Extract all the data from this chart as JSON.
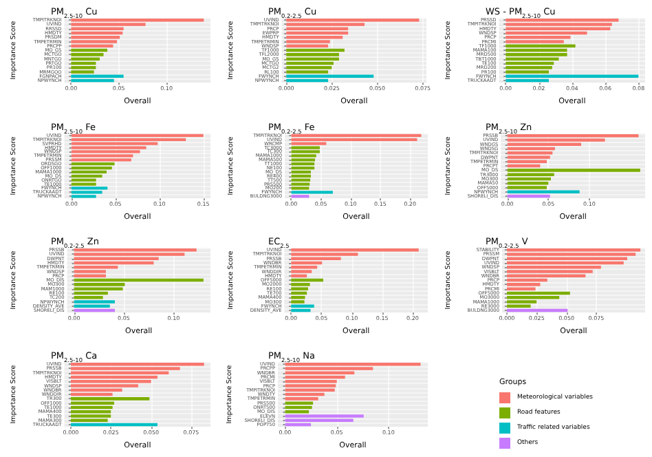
{
  "chart_data": [
    {
      "type": "bar",
      "orientation": "horizontal",
      "stacked": true,
      "grid": true,
      "title": "PM$_{2.5-10}$ Cu",
      "xlabel": "Overall",
      "ylabel": "Importance Score",
      "xlim": [
        -0.007,
        0.146
      ],
      "xticks": [
        {
          "value": 0,
          "label": "0.00"
        },
        {
          "value": 0.05,
          "label": "0.05"
        },
        {
          "value": 0.1,
          "label": "0.10"
        }
      ],
      "categories": [
        "TMPITRKNOI",
        "UVIND",
        "RRSSD",
        "HMDTY",
        "PRSDM",
        "TMPETRMIN",
        "PRCPP",
        "MO_GS",
        "MCTGO",
        "MNTGO",
        "PRTGO",
        "PR100",
        "MRMGOO",
        "FGNPACH",
        "NPWYNCH"
      ],
      "series": [
        {
          "color": "#f8766d",
          "values": [
            0.139,
            0.078,
            0.055,
            0.054,
            0.051,
            0.048,
            0.044,
            null,
            null,
            null,
            null,
            null,
            null,
            null,
            null
          ]
        },
        {
          "color": "#7cae00",
          "values": [
            null,
            null,
            null,
            null,
            null,
            null,
            null,
            0.038,
            0.034,
            0.03,
            0.026,
            0.026,
            0.024,
            null,
            null
          ]
        },
        {
          "color": "#00bfc4",
          "values": [
            null,
            null,
            null,
            null,
            null,
            null,
            null,
            null,
            null,
            null,
            null,
            null,
            null,
            0.055,
            0.045
          ]
        }
      ]
    },
    {
      "type": "bar",
      "orientation": "horizontal",
      "stacked": true,
      "grid": true,
      "title": "PM$_{0.2-2.5}$ Cu",
      "xlabel": "Overall",
      "ylabel": "Importance Score",
      "xlim": [
        -0.0025,
        0.077
      ],
      "xticks": [
        {
          "value": 0,
          "label": "0.000"
        },
        {
          "value": 0.025,
          "label": "0.025"
        },
        {
          "value": 0.05,
          "label": "0.050"
        },
        {
          "value": 0.075,
          "label": "0.075"
        }
      ],
      "categories": [
        "UVIND",
        "TMPITRKNOI",
        "PRCP",
        "EWPRP",
        "HMDTY",
        "TMPETRMIN",
        "WNDSP",
        "TF1000",
        "TFL2000",
        "MO_GS",
        "MCTGO",
        "MCTG2",
        "RL100",
        "FWYNCH",
        "NPWYNCH"
      ],
      "series": [
        {
          "color": "#f8766d",
          "values": [
            0.073,
            0.043,
            0.034,
            0.034,
            0.031,
            0.024,
            0.023,
            null,
            null,
            null,
            null,
            null,
            null,
            null,
            null
          ]
        },
        {
          "color": "#7cae00",
          "values": [
            null,
            null,
            null,
            null,
            null,
            null,
            null,
            0.032,
            0.029,
            0.029,
            0.026,
            0.025,
            0.023,
            null,
            null
          ]
        },
        {
          "color": "#00bfc4",
          "values": [
            null,
            null,
            null,
            null,
            null,
            null,
            null,
            null,
            null,
            null,
            null,
            null,
            null,
            0.048,
            0.023
          ]
        }
      ]
    },
    {
      "type": "bar",
      "orientation": "horizontal",
      "stacked": true,
      "grid": true,
      "title": "WS - PM$_{2.5-10}$ Cu",
      "xlabel": "Overall",
      "ylabel": "Importance Score",
      "xlim": [
        -0.004,
        0.084
      ],
      "xticks": [
        {
          "value": 0,
          "label": "0.00"
        },
        {
          "value": 0.02,
          "label": "0.02"
        },
        {
          "value": 0.04,
          "label": "0.04"
        },
        {
          "value": 0.06,
          "label": "0.06"
        },
        {
          "value": 0.08,
          "label": "0.08"
        }
      ],
      "categories": [
        "PRSSD",
        "TMPITRKNOI",
        "HMDTY",
        "WNDSP",
        "PRCP",
        "PRCMI",
        "TF1000",
        "MAMA100",
        "MRD500",
        "TBT1000",
        "TE100",
        "MRD200",
        "PR100",
        "FWYNCH",
        "TRUCKAADT"
      ],
      "series": [
        {
          "color": "#f8766d",
          "values": [
            0.068,
            0.064,
            0.063,
            0.049,
            0.039,
            0.035,
            null,
            null,
            null,
            null,
            null,
            null,
            null,
            null,
            null
          ]
        },
        {
          "color": "#7cae00",
          "values": [
            null,
            null,
            null,
            null,
            null,
            null,
            0.042,
            0.037,
            0.037,
            0.032,
            0.029,
            0.028,
            0.026,
            null,
            null
          ]
        },
        {
          "color": "#00bfc4",
          "values": [
            null,
            null,
            null,
            null,
            null,
            null,
            null,
            null,
            null,
            null,
            null,
            null,
            null,
            0.08,
            0.026
          ]
        }
      ]
    },
    {
      "type": "bar",
      "orientation": "horizontal",
      "stacked": true,
      "grid": true,
      "title": "PM$_{2.5-10}$ Fe",
      "xlabel": "Overall",
      "ylabel": "Importance Score",
      "xlim": [
        -0.008,
        0.158
      ],
      "xticks": [
        {
          "value": 0,
          "label": "0.00"
        },
        {
          "value": 0.05,
          "label": "0.05"
        },
        {
          "value": 0.1,
          "label": "0.10"
        },
        {
          "value": 0.15,
          "label": "0.15"
        }
      ],
      "categories": [
        "UVIND",
        "TMPITRKNOI",
        "SVPRHD",
        "HMDTY",
        "WNDSP",
        "TMPETRMIN",
        "PRSSM",
        "ORDSGO",
        "OFF1000",
        "MAMA1000",
        "MO_DS",
        "ONRTGO",
        "TE1000",
        "FWYNCH",
        "TRUCKAADT",
        "NPWYNCH"
      ],
      "series": [
        {
          "color": "#f8766d",
          "values": [
            0.15,
            0.13,
            0.098,
            0.085,
            0.078,
            0.07,
            0.068,
            null,
            null,
            null,
            null,
            null,
            null,
            null,
            null,
            null
          ]
        },
        {
          "color": "#7cae00",
          "values": [
            null,
            null,
            null,
            null,
            null,
            null,
            null,
            0.049,
            0.046,
            0.04,
            0.035,
            0.028,
            0.028,
            null,
            null,
            null
          ]
        },
        {
          "color": "#00bfc4",
          "values": [
            null,
            null,
            null,
            null,
            null,
            null,
            null,
            null,
            null,
            null,
            null,
            null,
            null,
            0.041,
            0.035,
            0.028
          ]
        }
      ]
    },
    {
      "type": "bar",
      "orientation": "horizontal",
      "stacked": true,
      "grid": true,
      "title": "PM$_{0.2-2.5}$ Fe",
      "xlabel": "Overall",
      "ylabel": "Importance Score",
      "xlim": [
        -0.011,
        0.23
      ],
      "xticks": [
        {
          "value": 0,
          "label": "0.00"
        },
        {
          "value": 0.05,
          "label": "0.05"
        },
        {
          "value": 0.1,
          "label": "0.10"
        },
        {
          "value": 0.15,
          "label": "0.15"
        },
        {
          "value": 0.2,
          "label": "0.20"
        }
      ],
      "categories": [
        "TMPITRKNOI",
        "UVIND",
        "WRCMP",
        "TC3000",
        "TC300",
        "MAMA1000",
        "MAMA500",
        "TT1000",
        "NE100",
        "MO_DS",
        "RE400",
        "TT500",
        "PRS500",
        "MO200",
        "FWYNCH",
        "BULDNG3000"
      ],
      "series": [
        {
          "color": "#f8766d",
          "values": [
            0.219,
            0.212,
            0.059,
            null,
            null,
            null,
            null,
            null,
            null,
            null,
            null,
            null,
            null,
            null,
            null,
            null
          ]
        },
        {
          "color": "#7cae00",
          "values": [
            null,
            null,
            null,
            0.048,
            0.048,
            0.042,
            0.04,
            0.039,
            0.039,
            0.033,
            0.033,
            0.032,
            0.031,
            0.03,
            null,
            null
          ]
        },
        {
          "color": "#00bfc4",
          "values": [
            null,
            null,
            null,
            null,
            null,
            null,
            null,
            null,
            null,
            null,
            null,
            null,
            null,
            null,
            0.07,
            null
          ]
        },
        {
          "color": "#c77cff",
          "values": [
            null,
            null,
            null,
            null,
            null,
            null,
            null,
            null,
            null,
            null,
            null,
            null,
            null,
            null,
            null,
            0.03
          ]
        }
      ]
    },
    {
      "type": "bar",
      "orientation": "horizontal",
      "stacked": true,
      "grid": true,
      "title": "PM$_{2.5-10}$ Zn",
      "xlabel": "Overall",
      "ylabel": "Importance Score",
      "xlim": [
        -0.008,
        0.168
      ],
      "xticks": [
        {
          "value": 0,
          "label": "0.00"
        },
        {
          "value": 0.05,
          "label": "0.05"
        },
        {
          "value": 0.1,
          "label": "0.10"
        }
      ],
      "categories": [
        "PRSSB",
        "UVIND",
        "WNDGS",
        "WNDSG",
        "TMPITRKNOI",
        "DWPNT",
        "TMPETRMIN",
        "PRCPT",
        "MO_DS",
        "TR3000",
        "MO300",
        "MAMA50",
        "OFF5000",
        "NPWYNCH",
        "SHORELI_DIS"
      ],
      "series": [
        {
          "color": "#f8766d",
          "values": [
            0.16,
            0.119,
            0.09,
            0.058,
            0.055,
            0.052,
            0.048,
            0.04,
            null,
            null,
            null,
            null,
            null,
            null,
            null
          ]
        },
        {
          "color": "#7cae00",
          "values": [
            null,
            null,
            null,
            null,
            null,
            null,
            null,
            null,
            0.162,
            0.057,
            0.053,
            0.05,
            0.048,
            null,
            null
          ]
        },
        {
          "color": "#00bfc4",
          "values": [
            null,
            null,
            null,
            null,
            null,
            null,
            null,
            null,
            null,
            null,
            null,
            null,
            null,
            0.088,
            null
          ]
        },
        {
          "color": "#c77cff",
          "values": [
            null,
            null,
            null,
            null,
            null,
            null,
            null,
            null,
            null,
            null,
            null,
            null,
            null,
            null,
            0.052
          ]
        }
      ]
    },
    {
      "type": "bar",
      "orientation": "horizontal",
      "stacked": true,
      "grid": true,
      "title": "PM$_{0.2-2.5}$ Zn",
      "xlabel": "Overall",
      "ylabel": "Importance Score",
      "xlim": [
        -0.007,
        0.137
      ],
      "xticks": [
        {
          "value": 0,
          "label": "0.00"
        },
        {
          "value": 0.05,
          "label": "0.05"
        },
        {
          "value": 0.1,
          "label": "0.10"
        }
      ],
      "categories": [
        "PRSSB",
        "UVIND",
        "DWPNT",
        "HMDTY",
        "TMPETRMIN",
        "WNDSP",
        "PRCP",
        "MO_DIS",
        "MO300",
        "MAM1000",
        "RE100",
        "TC200",
        "NPWYNCH",
        "DENSITY_AVE",
        "SHORELI_DIS"
      ],
      "series": [
        {
          "color": "#f8766d",
          "values": [
            0.123,
            0.111,
            0.085,
            0.08,
            0.044,
            0.032,
            0.032,
            null,
            null,
            null,
            null,
            null,
            null,
            null,
            null
          ]
        },
        {
          "color": "#7cae00",
          "values": [
            null,
            null,
            null,
            null,
            null,
            null,
            null,
            0.13,
            0.051,
            0.049,
            0.034,
            0.029,
            null,
            null,
            null
          ]
        },
        {
          "color": "#00bfc4",
          "values": [
            null,
            null,
            null,
            null,
            null,
            null,
            null,
            null,
            null,
            null,
            null,
            null,
            0.041,
            0.036,
            null
          ]
        },
        {
          "color": "#c77cff",
          "values": [
            null,
            null,
            null,
            null,
            null,
            null,
            null,
            null,
            null,
            null,
            null,
            null,
            null,
            null,
            0.041
          ]
        }
      ]
    },
    {
      "type": "bar",
      "orientation": "horizontal",
      "stacked": true,
      "grid": true,
      "title": "EC$_{2.5}$",
      "xlabel": "Overall",
      "ylabel": "Importance Score",
      "xlim": [
        -0.011,
        0.225
      ],
      "xticks": [
        {
          "value": 0,
          "label": "0.00"
        },
        {
          "value": 0.05,
          "label": "0.05"
        },
        {
          "value": 0.1,
          "label": "0.10"
        },
        {
          "value": 0.15,
          "label": "0.15"
        },
        {
          "value": 0.2,
          "label": "0.20"
        }
      ],
      "categories": [
        "UVIND",
        "TMPITRKNOI",
        "PRSSB",
        "WNDBR",
        "TMPETRMIN",
        "WNDDIR",
        "HMDTY",
        "OFF5000",
        "MO2000",
        "RE100",
        "TE700",
        "MAMA400",
        "MO300",
        "FWYNCH",
        "DENSITY_AVE"
      ],
      "series": [
        {
          "color": "#f8766d",
          "values": [
            0.21,
            0.11,
            0.082,
            0.051,
            0.043,
            0.034,
            0.026,
            null,
            null,
            null,
            null,
            null,
            null,
            null,
            null
          ]
        },
        {
          "color": "#7cae00",
          "values": [
            null,
            null,
            null,
            null,
            null,
            null,
            null,
            0.053,
            0.031,
            0.028,
            0.026,
            0.023,
            0.022,
            null,
            null
          ]
        },
        {
          "color": "#00bfc4",
          "values": [
            null,
            null,
            null,
            null,
            null,
            null,
            null,
            null,
            null,
            null,
            null,
            null,
            null,
            0.038,
            0.032
          ]
        }
      ]
    },
    {
      "type": "bar",
      "orientation": "horizontal",
      "stacked": true,
      "grid": true,
      "title": "PM$_{0.2-2.5}$ V",
      "xlabel": "Overall",
      "ylabel": "Importance Score",
      "xlim": [
        -0.004,
        0.116
      ],
      "xticks": [
        {
          "value": 0,
          "label": "0.000"
        },
        {
          "value": 0.025,
          "label": "0.025"
        },
        {
          "value": 0.05,
          "label": "0.050"
        },
        {
          "value": 0.075,
          "label": "0.075"
        }
      ],
      "categories": [
        "STABILITY",
        "PRSSM",
        "DWPNT",
        "UVIND",
        "WNDSP",
        "VISBLT",
        "WNDBR",
        "PRCP",
        "HMDTY",
        "PRCMI",
        "OFF5000",
        "MO3000",
        "MAMA1000",
        "RE3000",
        "BULDNG3000"
      ],
      "series": [
        {
          "color": "#f8766d",
          "values": [
            0.112,
            0.108,
            0.101,
            0.098,
            0.079,
            0.072,
            0.066,
            0.034,
            0.028,
            0.024,
            null,
            null,
            null,
            null,
            null
          ]
        },
        {
          "color": "#7cae00",
          "values": [
            null,
            null,
            null,
            null,
            null,
            null,
            null,
            null,
            null,
            null,
            0.053,
            0.044,
            0.025,
            0.02,
            null
          ]
        },
        {
          "color": "#c77cff",
          "values": [
            null,
            null,
            null,
            null,
            null,
            null,
            null,
            null,
            null,
            null,
            null,
            null,
            null,
            null,
            0.051
          ]
        }
      ]
    },
    {
      "type": "bar",
      "orientation": "horizontal",
      "stacked": true,
      "grid": true,
      "title": "PM$_{2.5-10}$ Ca",
      "xlabel": "Overall",
      "ylabel": "Importance Score",
      "xlim": [
        -0.004,
        0.087
      ],
      "xticks": [
        {
          "value": 0,
          "label": "0.000"
        },
        {
          "value": 0.025,
          "label": "0.025"
        },
        {
          "value": 0.05,
          "label": "0.050"
        },
        {
          "value": 0.075,
          "label": "0.075"
        }
      ],
      "categories": [
        "UVIND",
        "PRSSB",
        "TMPITRKNOI",
        "HMDTY",
        "VISBLT",
        "WNDSP",
        "WNDBR",
        "WNDDIR",
        "TR300",
        "OFF1000",
        "TE1000",
        "MAMA400",
        "TE300",
        "MAMA300",
        "TRUCKAADT"
      ],
      "series": [
        {
          "color": "#f8766d",
          "values": [
            0.083,
            0.068,
            0.061,
            0.054,
            0.05,
            0.042,
            0.032,
            0.026,
            null,
            null,
            null,
            null,
            null,
            null,
            null
          ]
        },
        {
          "color": "#7cae00",
          "values": [
            null,
            null,
            null,
            null,
            null,
            null,
            null,
            null,
            0.049,
            0.027,
            0.026,
            0.025,
            0.025,
            0.023,
            null
          ]
        },
        {
          "color": "#00bfc4",
          "values": [
            null,
            null,
            null,
            null,
            null,
            null,
            null,
            null,
            null,
            null,
            null,
            null,
            null,
            null,
            0.054
          ]
        }
      ]
    },
    {
      "type": "bar",
      "orientation": "horizontal",
      "stacked": true,
      "grid": true,
      "legend": "right",
      "legend_title": "Groups",
      "title": "PM$_{2.5-10}$ Na",
      "xlabel": "Overall",
      "ylabel": "Importance Score",
      "xlim": [
        -0.007,
        0.138
      ],
      "xticks": [
        {
          "value": 0,
          "label": "0.00"
        },
        {
          "value": 0.05,
          "label": "0.05"
        },
        {
          "value": 0.1,
          "label": "0.10"
        }
      ],
      "categories": [
        "UVIND",
        "PRCPP",
        "WNDBR",
        "PRCMI",
        "VISBLT",
        "PRCP",
        "TMPITRKNOI",
        "WNDTY",
        "TMPETRMIN",
        "PRS500",
        "ONRT500",
        "MO_DIS",
        "ELEVN",
        "SHORELI_DIS",
        "POP750"
      ],
      "series": [
        {
          "name": "Meteorological variables",
          "color": "#f8766d",
          "values": [
            0.131,
            0.085,
            0.067,
            0.058,
            0.05,
            0.049,
            0.048,
            0.038,
            0.032,
            null,
            null,
            null,
            null,
            null,
            null
          ]
        },
        {
          "name": "Road features",
          "color": "#7cae00",
          "values": [
            null,
            null,
            null,
            null,
            null,
            null,
            null,
            null,
            null,
            0.027,
            0.026,
            0.023,
            null,
            null,
            null
          ]
        },
        {
          "name": "Traffic related variables",
          "color": "#00bfc4",
          "values": [
            null,
            null,
            null,
            null,
            null,
            null,
            null,
            null,
            null,
            null,
            null,
            null,
            null,
            null,
            null
          ]
        },
        {
          "name": "Others",
          "color": "#c77cff",
          "values": [
            null,
            null,
            null,
            null,
            null,
            null,
            null,
            null,
            null,
            null,
            null,
            null,
            0.076,
            0.066,
            0.025
          ]
        }
      ]
    }
  ]
}
